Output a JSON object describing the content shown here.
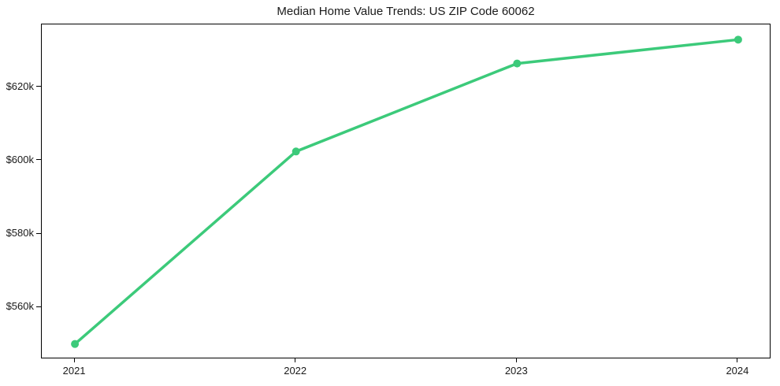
{
  "chart_data": {
    "type": "line",
    "title": "Median Home Value Trends: US ZIP Code 60062",
    "series": [
      {
        "name": "Median Home Value",
        "x": [
          2021,
          2022,
          2023,
          2024
        ],
        "values": [
          550000,
          602500,
          626500,
          633000
        ]
      }
    ],
    "xlabel": "",
    "ylabel": "",
    "xlim": [
      2020.85,
      2024.15
    ],
    "ylim": [
      545850,
      637150
    ],
    "x_ticks": [
      {
        "value": 2021,
        "label": "2021"
      },
      {
        "value": 2022,
        "label": "2022"
      },
      {
        "value": 2023,
        "label": "2023"
      },
      {
        "value": 2024,
        "label": "2024"
      }
    ],
    "y_ticks": [
      {
        "value": 560000,
        "label": "$560k"
      },
      {
        "value": 580000,
        "label": "$580k"
      },
      {
        "value": 600000,
        "label": "$600k"
      },
      {
        "value": 620000,
        "label": "$620k"
      }
    ],
    "grid": false,
    "legend": "none",
    "colors": {
      "line": "#3cca7a",
      "marker": "#3cca7a",
      "text": "#1a1a1a",
      "spine": "#000000",
      "background": "#ffffff"
    },
    "line_width": 3.5,
    "marker_style": "circle",
    "marker_radius": 5
  }
}
